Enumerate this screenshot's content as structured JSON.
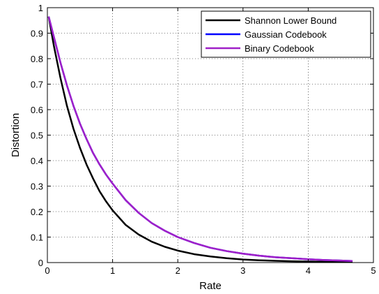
{
  "chart_data": {
    "type": "line",
    "xlabel": "Rate",
    "ylabel": "Distortion",
    "xlim": [
      0,
      5
    ],
    "ylim": [
      0,
      1
    ],
    "xticks": [
      0,
      1,
      2,
      3,
      4,
      5
    ],
    "yticks": [
      0,
      0.1,
      0.2,
      0.3,
      0.4,
      0.5,
      0.6,
      0.7,
      0.8,
      0.9,
      1
    ],
    "grid": true,
    "legend_position": "top-right",
    "series": [
      {
        "name": "Shannon Lower Bound",
        "color": "#000000",
        "x": [
          0.02,
          0.1,
          0.2,
          0.3,
          0.4,
          0.5,
          0.6,
          0.7,
          0.8,
          0.9,
          1.0,
          1.2,
          1.4,
          1.6,
          1.8,
          2.0,
          2.25,
          2.5,
          2.75,
          3.0,
          3.25,
          3.5,
          3.75,
          4.0,
          4.25,
          4.5,
          4.68
        ],
        "y": [
          0.965,
          0.85,
          0.725,
          0.615,
          0.525,
          0.45,
          0.385,
          0.33,
          0.28,
          0.24,
          0.205,
          0.148,
          0.11,
          0.082,
          0.062,
          0.047,
          0.033,
          0.024,
          0.017,
          0.012,
          0.009,
          0.007,
          0.005,
          0.004,
          0.003,
          0.002,
          0.002
        ]
      },
      {
        "name": "Gaussian Codebook",
        "color": "#0000ff",
        "x": [
          0.02,
          0.1,
          0.2,
          0.3,
          0.4,
          0.5,
          0.6,
          0.7,
          0.8,
          0.9,
          1.0,
          1.2,
          1.4,
          1.6,
          1.8,
          2.0,
          2.25,
          2.5,
          2.75,
          3.0,
          3.25,
          3.5,
          3.75,
          4.0,
          4.25,
          4.5,
          4.68
        ],
        "y": [
          0.965,
          0.885,
          0.785,
          0.695,
          0.615,
          0.545,
          0.485,
          0.43,
          0.385,
          0.345,
          0.31,
          0.245,
          0.195,
          0.155,
          0.125,
          0.1,
          0.077,
          0.058,
          0.045,
          0.035,
          0.027,
          0.021,
          0.017,
          0.013,
          0.01,
          0.008,
          0.006
        ]
      },
      {
        "name": "Binary Codebook",
        "color": "#a020c8",
        "x": [
          0.02,
          0.1,
          0.2,
          0.3,
          0.4,
          0.5,
          0.6,
          0.7,
          0.8,
          0.9,
          1.0,
          1.2,
          1.4,
          1.6,
          1.8,
          2.0,
          2.25,
          2.5,
          2.75,
          3.0,
          3.25,
          3.5,
          3.75,
          4.0,
          4.25,
          4.5,
          4.68
        ],
        "y": [
          0.965,
          0.885,
          0.785,
          0.695,
          0.615,
          0.545,
          0.485,
          0.43,
          0.385,
          0.345,
          0.31,
          0.245,
          0.195,
          0.155,
          0.125,
          0.1,
          0.077,
          0.058,
          0.045,
          0.035,
          0.027,
          0.021,
          0.017,
          0.013,
          0.01,
          0.008,
          0.006
        ]
      }
    ]
  }
}
